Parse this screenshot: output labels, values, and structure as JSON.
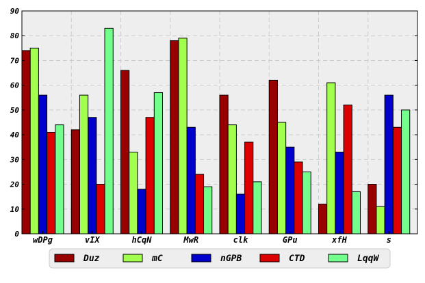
{
  "chart_data": {
    "type": "bar",
    "categories": [
      "wDPg",
      "vIX",
      "hCqN",
      "MwR",
      "clk",
      "GPu",
      "xfH",
      "s"
    ],
    "series": [
      {
        "name": "Duz",
        "color": "#990000",
        "values": [
          74,
          42,
          66,
          78,
          56,
          62,
          12,
          20
        ]
      },
      {
        "name": "mC",
        "color": "#a3ff4d",
        "values": [
          75,
          56,
          33,
          79,
          44,
          45,
          61,
          11
        ]
      },
      {
        "name": "nGPB",
        "color": "#0000cc",
        "values": [
          56,
          47,
          18,
          43,
          16,
          35,
          33,
          56
        ]
      },
      {
        "name": "CTD",
        "color": "#dd0000",
        "values": [
          41,
          20,
          47,
          24,
          37,
          29,
          52,
          43
        ]
      },
      {
        "name": "LqqW",
        "color": "#73ff8c",
        "values": [
          44,
          83,
          57,
          19,
          21,
          25,
          17,
          50
        ]
      }
    ],
    "ylim": [
      0,
      90
    ],
    "yticks": [
      0,
      10,
      20,
      30,
      40,
      50,
      60,
      70,
      80,
      90
    ],
    "grid": true,
    "legend_position": "bottom",
    "plot_background": "#eeeeee",
    "title": "",
    "xlabel": "",
    "ylabel": ""
  }
}
